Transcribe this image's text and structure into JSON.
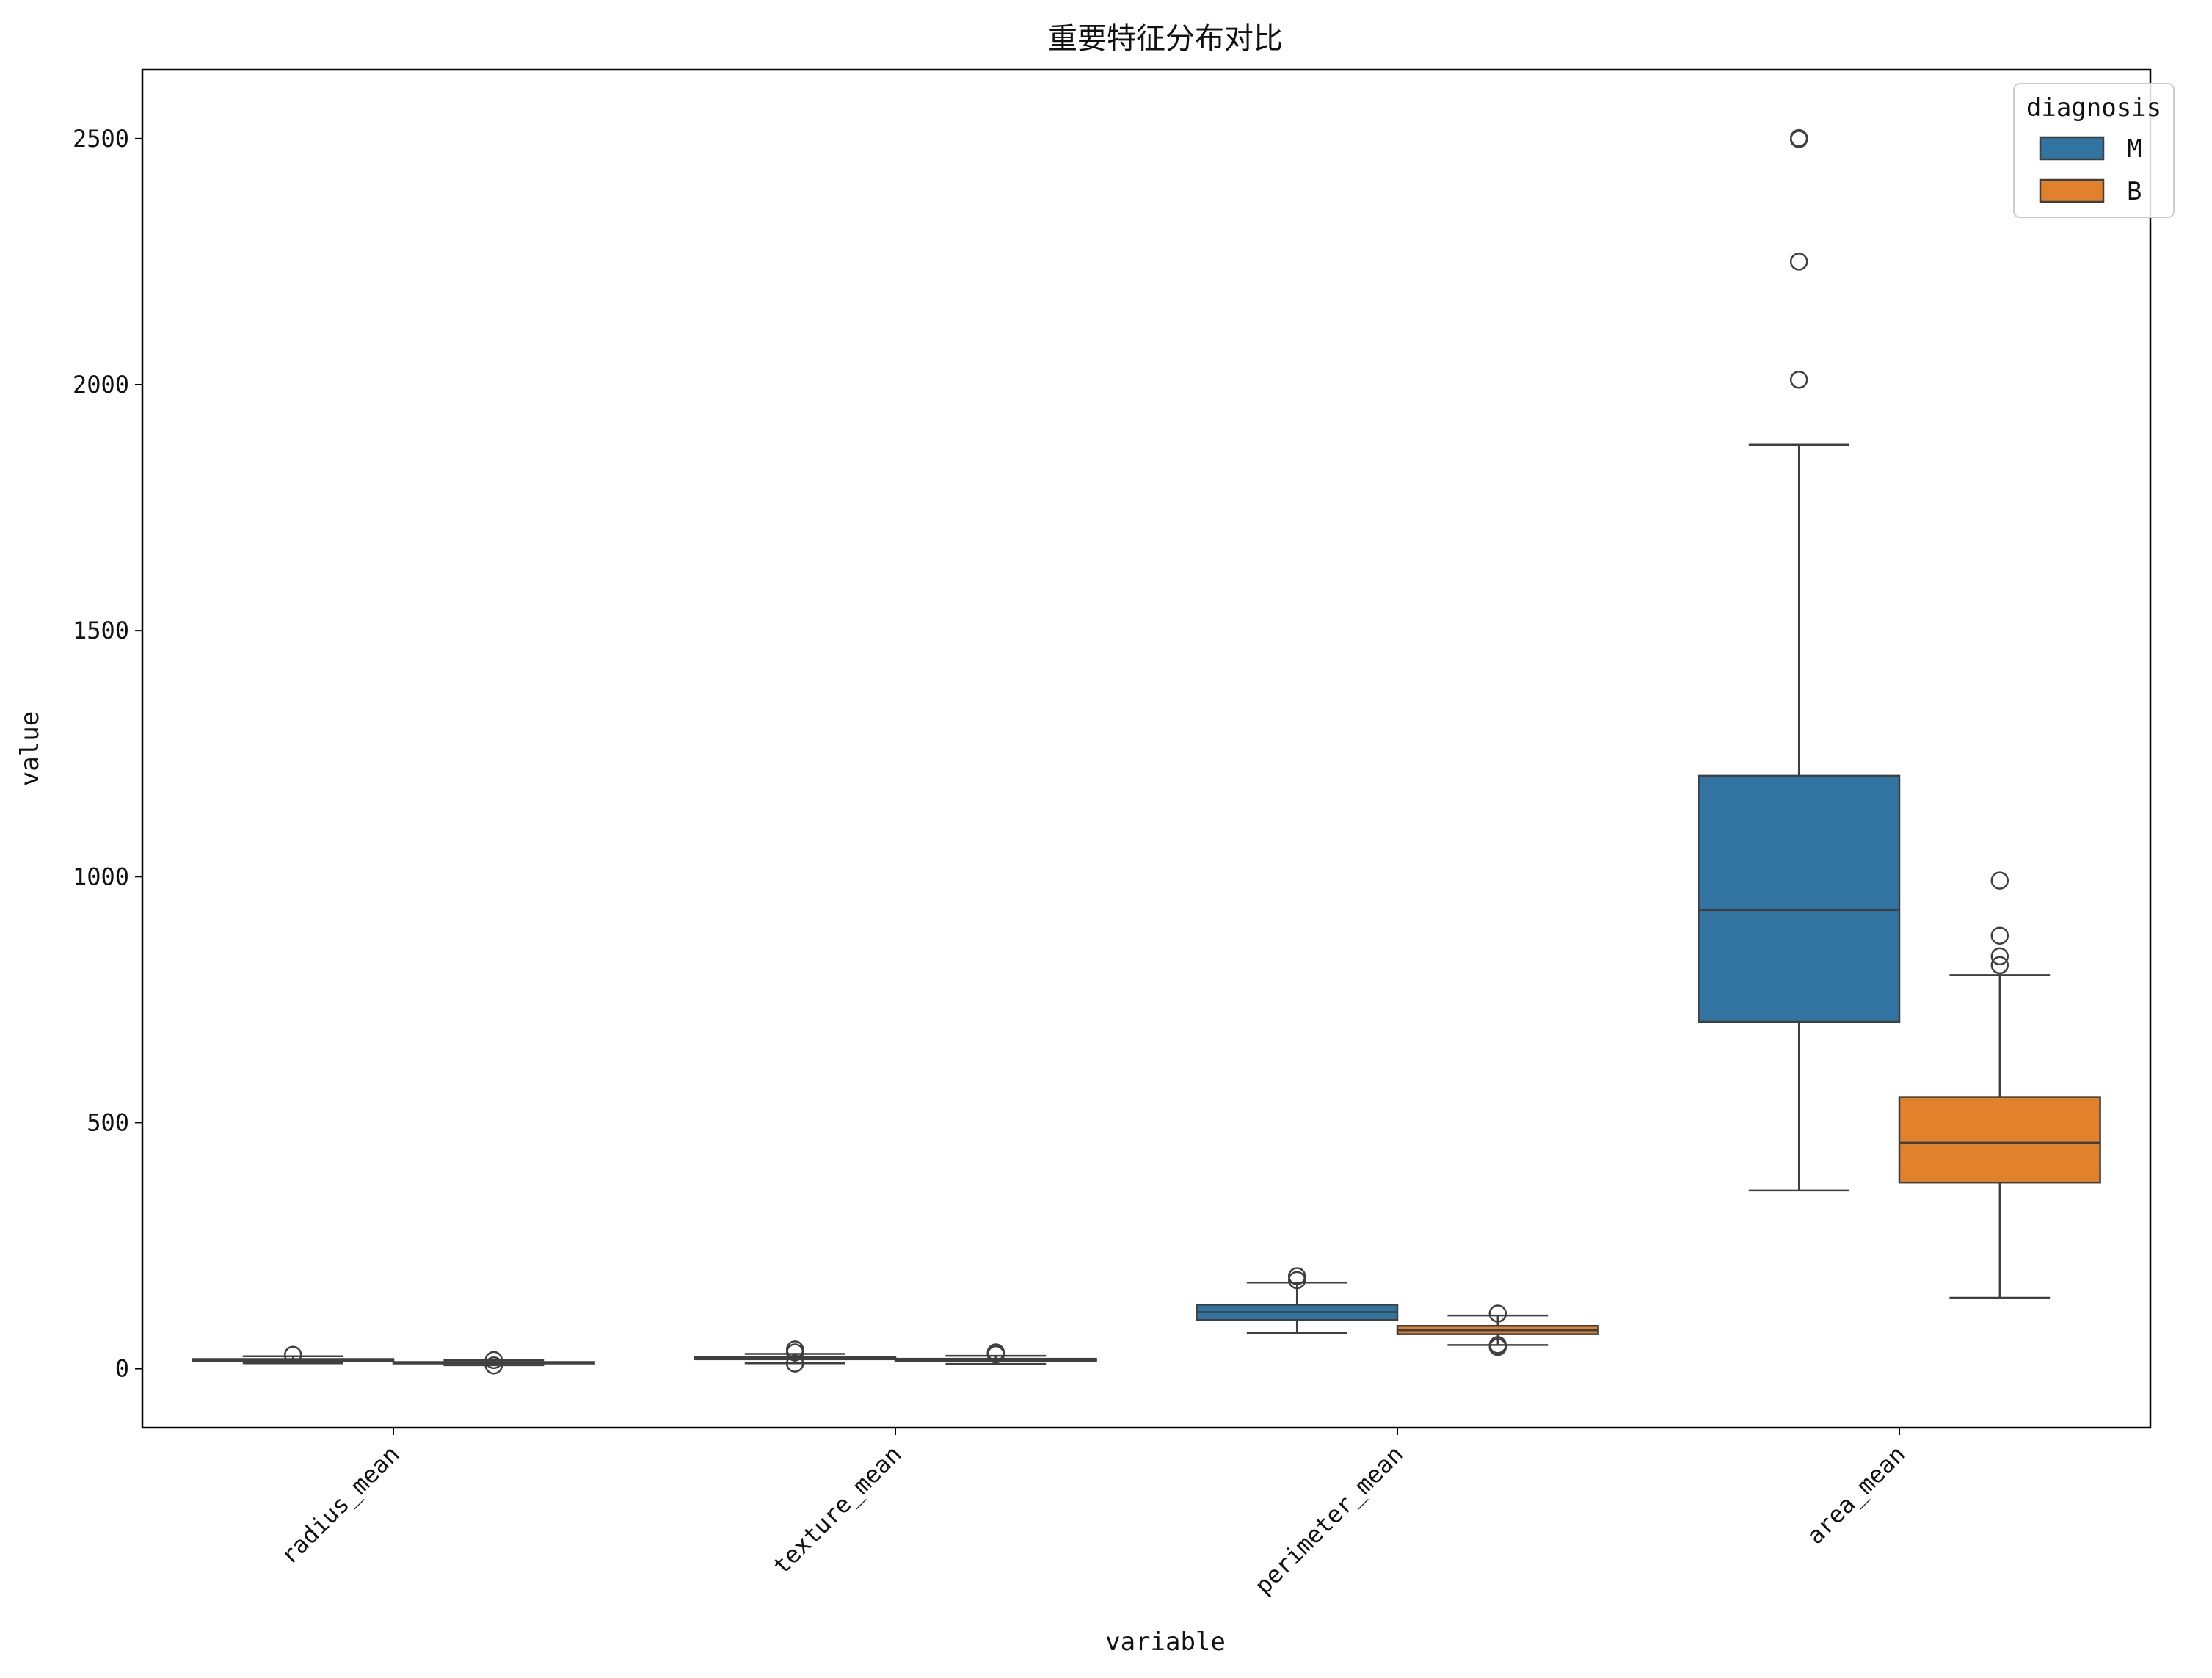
{
  "chart_data": {
    "type": "box",
    "title": "重要特征分布对比",
    "xlabel": "variable",
    "ylabel": "value",
    "ylim": [
      -120,
      2640
    ],
    "yticks": [
      0,
      500,
      1000,
      1500,
      2000,
      2500
    ],
    "ytick_labels": [
      "0",
      "500",
      "1000",
      "1500",
      "2000",
      "2500"
    ],
    "grid": false,
    "categories": [
      "radius_mean",
      "texture_mean",
      "perimeter_mean",
      "area_mean"
    ],
    "legend": {
      "title": "diagnosis",
      "position": "top-right"
    },
    "series": [
      {
        "name": "M",
        "color": "#3274a1",
        "boxes": [
          {
            "whislo": 11,
            "q1": 15,
            "med": 17,
            "q3": 19.5,
            "whishi": 25,
            "fliers": [
              28
            ]
          },
          {
            "whislo": 11,
            "q1": 19,
            "med": 21,
            "q3": 24,
            "whishi": 30,
            "fliers": [
              10.4,
              33,
              39
            ]
          },
          {
            "whislo": 72,
            "q1": 99,
            "med": 115,
            "q3": 130,
            "whishi": 175,
            "fliers": [
              180,
              188
            ]
          },
          {
            "whislo": 362,
            "q1": 705,
            "med": 932,
            "q3": 1205,
            "whishi": 1878,
            "fliers": [
              2010,
              2250,
              2499,
              2501
            ]
          }
        ]
      },
      {
        "name": "B",
        "color": "#e1812c",
        "boxes": [
          {
            "whislo": 7,
            "q1": 11,
            "med": 12,
            "q3": 13.5,
            "whishi": 17,
            "fliers": [
              6.5,
              17.5
            ]
          },
          {
            "whislo": 9.7,
            "q1": 15,
            "med": 17.5,
            "q3": 20,
            "whishi": 26,
            "fliers": [
              29,
              33
            ]
          },
          {
            "whislo": 48,
            "q1": 70,
            "med": 78,
            "q3": 87,
            "whishi": 108,
            "fliers": [
              44,
              48,
              112
            ]
          },
          {
            "whislo": 144,
            "q1": 378,
            "med": 459,
            "q3": 552,
            "whishi": 800,
            "fliers": [
              820,
              838,
              880,
              992
            ]
          }
        ]
      }
    ]
  }
}
